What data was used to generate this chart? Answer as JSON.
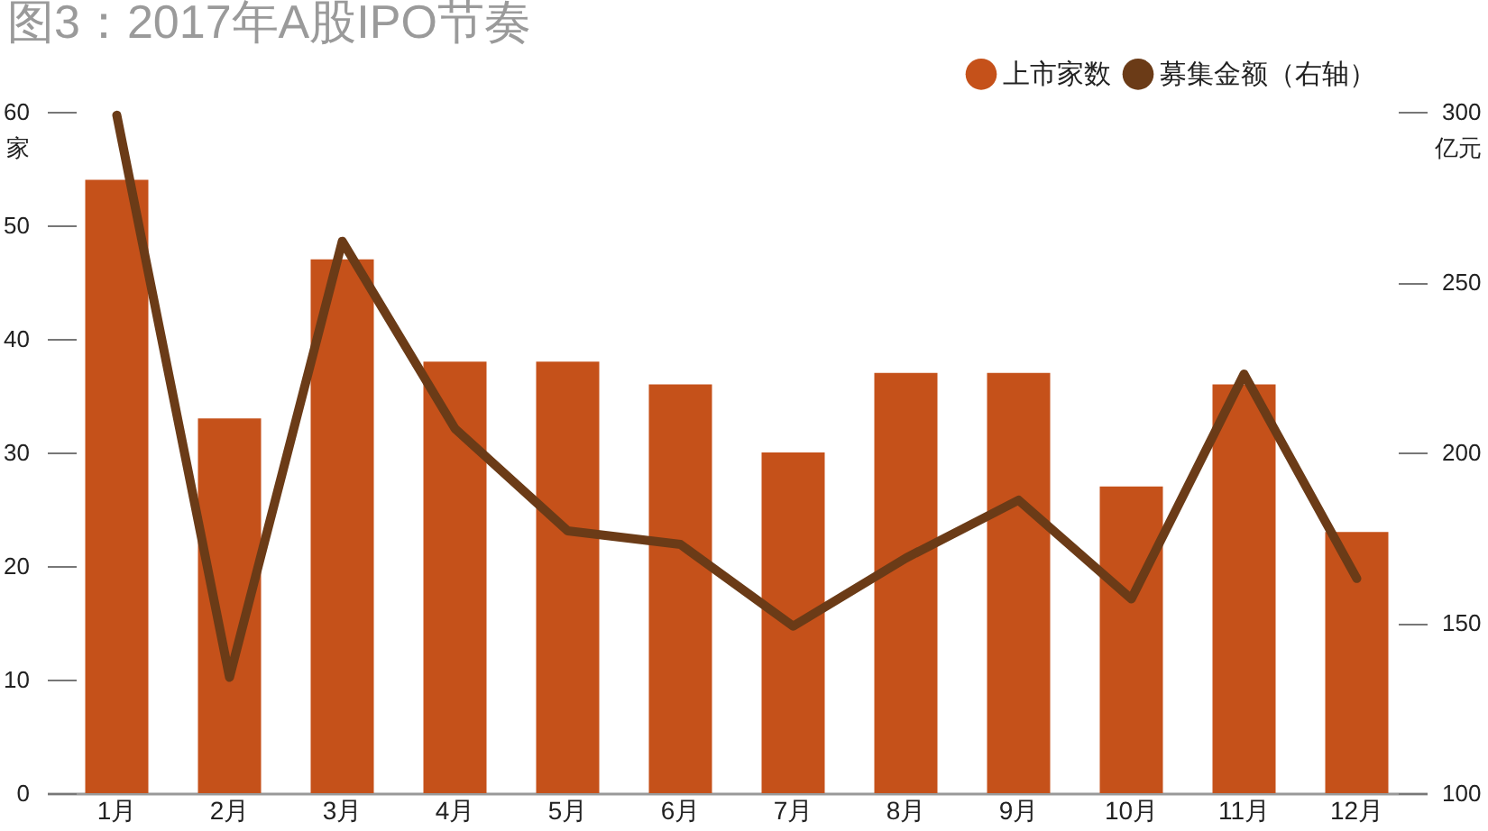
{
  "chart_data": {
    "type": "bar",
    "title": "图3：2017年A股IPO节奏",
    "ylabel": "家",
    "y2label": "亿元",
    "categories": [
      "1月",
      "2月",
      "3月",
      "4月",
      "5月",
      "6月",
      "7月",
      "8月",
      "9月",
      "10月",
      "11月",
      "12月"
    ],
    "series": [
      {
        "name": "上市家数",
        "color": "#c5511a",
        "values": [
          54,
          33,
          47,
          38,
          38,
          36,
          30,
          37,
          37,
          27,
          36,
          23
        ]
      },
      {
        "name": "募集金额（右轴）",
        "type": "line",
        "axis": "y2",
        "color": "#6b3b17",
        "values": [
          299,
          134,
          262,
          207,
          177,
          173,
          149,
          169,
          186,
          157,
          223,
          163
        ]
      }
    ],
    "ylim": [
      0,
      60
    ],
    "yticks": [
      0,
      10,
      20,
      30,
      40,
      50,
      60
    ],
    "y2lim": [
      100,
      300
    ],
    "y2ticks": [
      100,
      150,
      200,
      250,
      300
    ],
    "legend": "top right",
    "grid": false,
    "marker": "none",
    "line_style": "solid"
  }
}
